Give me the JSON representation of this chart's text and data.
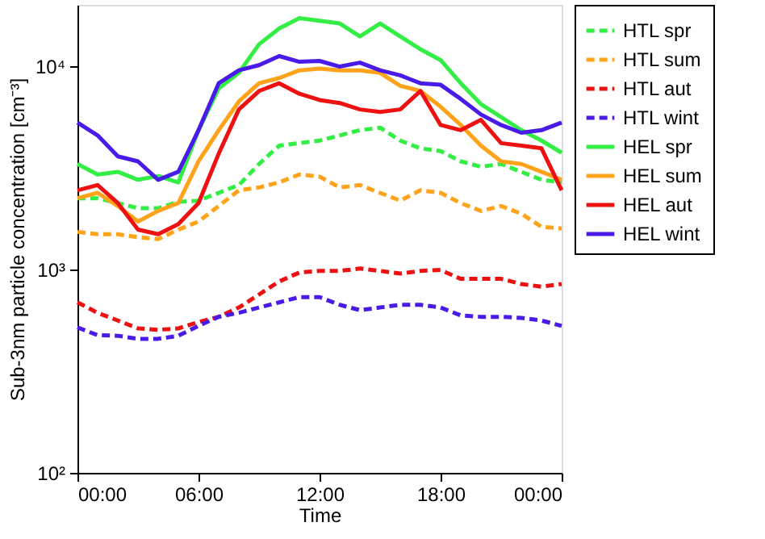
{
  "chart_data": {
    "type": "line",
    "xlabel": "Time",
    "ylabel": "Sub-3nm particle concentration [cm⁻³]",
    "x": [
      0,
      1,
      2,
      3,
      4,
      5,
      6,
      7,
      8,
      9,
      10,
      11,
      12,
      13,
      14,
      15,
      16,
      17,
      18,
      19,
      20,
      21,
      22,
      23,
      24
    ],
    "series": [
      {
        "name": "HTL spr",
        "color": "#33ee44",
        "line_style": "dashed",
        "values": [
          2240,
          2240,
          2120,
          2000,
          2000,
          2150,
          2180,
          2380,
          2600,
          3300,
          4060,
          4180,
          4300,
          4560,
          4840,
          4980,
          4300,
          3940,
          3820,
          3400,
          3200,
          3300,
          3020,
          2760,
          2680
        ]
      },
      {
        "name": "HTL sum",
        "color": "#ffa31a",
        "line_style": "dashed",
        "values": [
          1530,
          1490,
          1490,
          1440,
          1410,
          1570,
          1720,
          2050,
          2450,
          2530,
          2680,
          2930,
          2860,
          2530,
          2600,
          2380,
          2180,
          2450,
          2380,
          2120,
          1940,
          2050,
          1880,
          1620,
          1590
        ]
      },
      {
        "name": "HTL aut",
        "color": "#ee1111",
        "line_style": "dashed",
        "values": [
          689,
          612,
          561,
          513,
          505,
          513,
          551,
          585,
          650,
          753,
          873,
          966,
          984,
          984,
          1010,
          984,
          954,
          984,
          994,
          899,
          899,
          899,
          848,
          823,
          848
        ]
      },
      {
        "name": "HTL wint",
        "color": "#4a1ae8",
        "line_style": "dashed",
        "values": [
          519,
          475,
          472,
          456,
          456,
          472,
          528,
          585,
          612,
          650,
          689,
          731,
          731,
          670,
          631,
          650,
          670,
          670,
          650,
          594,
          585,
          585,
          578,
          561,
          528
        ]
      },
      {
        "name": "HEL spr",
        "color": "#33ee44",
        "line_style": "solid",
        "values": [
          3300,
          2930,
          3020,
          2760,
          2880,
          2680,
          4840,
          7760,
          9260,
          12800,
          15300,
          17200,
          16700,
          16200,
          14000,
          16200,
          14000,
          12100,
          10700,
          8230,
          6500,
          5610,
          4840,
          4300,
          3750
        ]
      },
      {
        "name": "HEL sum",
        "color": "#ffa31a",
        "line_style": "solid",
        "values": [
          2240,
          2380,
          2050,
          1720,
          1940,
          2120,
          3400,
          4840,
          6700,
          8230,
          8730,
          9530,
          9710,
          9530,
          9530,
          9260,
          8000,
          7540,
          6310,
          5130,
          4060,
          3400,
          3300,
          3020,
          2760
        ]
      },
      {
        "name": "HEL aut",
        "color": "#ee1111",
        "line_style": "solid",
        "values": [
          2450,
          2600,
          2120,
          1570,
          1490,
          1670,
          2120,
          3710,
          6120,
          7540,
          8230,
          7310,
          6810,
          6580,
          6120,
          5950,
          6120,
          7540,
          5130,
          4840,
          5440,
          4180,
          4060,
          3940,
          2450
        ]
      },
      {
        "name": "HEL wint",
        "color": "#4a1ae8",
        "line_style": "solid",
        "values": [
          5280,
          4560,
          3600,
          3400,
          2760,
          3020,
          4840,
          8230,
          9530,
          10100,
          11200,
          10500,
          10600,
          9940,
          10400,
          9530,
          9000,
          8230,
          8090,
          6890,
          5780,
          5130,
          4700,
          4840,
          5280
        ]
      }
    ],
    "xlim": [
      0,
      24
    ],
    "xticks": [
      {
        "value": 0,
        "label": "00:00"
      },
      {
        "value": 6,
        "label": "06:00"
      },
      {
        "value": 12,
        "label": "12:00"
      },
      {
        "value": 18,
        "label": "18:00"
      },
      {
        "value": 24,
        "label": "00:00"
      }
    ],
    "ylim": [
      100,
      20000
    ],
    "yticks": [
      {
        "value": 100,
        "label": "10²"
      },
      {
        "value": 1000,
        "label": "10³"
      },
      {
        "value": 10000,
        "label": "10⁴"
      }
    ],
    "log": true,
    "grid": false,
    "legend": "right"
  }
}
